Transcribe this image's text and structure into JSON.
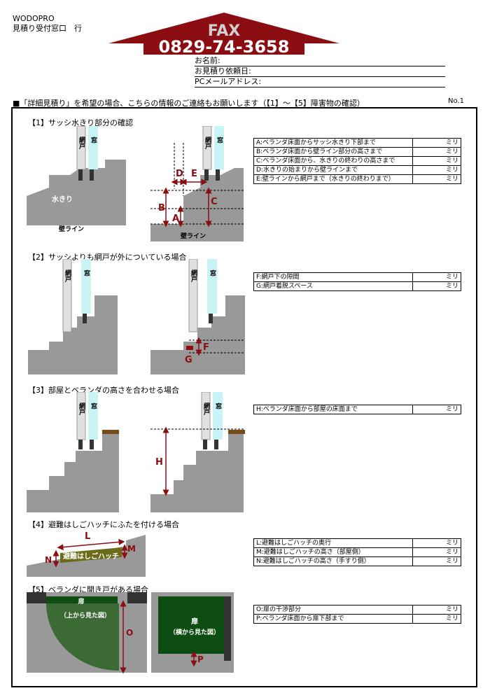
{
  "header": {
    "company": "WODOPRO",
    "window": "見積り受付窓口　行",
    "fax_label": "FAX",
    "fax_number": "0829-74-3658",
    "fields": [
      "お名前:",
      "お見積り依頼日:",
      "PCメールアドレス:"
    ]
  },
  "intro": "■「詳細見積り」を希望の場合、こちらの情報のご連絡もお願いします（【1】〜【5】障害物の確認）",
  "page_no": "No.1",
  "unit": "ミリ",
  "sections": [
    {
      "title": "【1】サッシ水きり部分の確認",
      "rows": [
        "A:ベランダ床面からサッシ水きり下部まで",
        "B:ベランダ床面から壁ライン部分の高さまで",
        "C:ベランダ床面から、水きりの終わりの高さまで",
        "D:水きりの始まりから壁ラインまで",
        "E:壁ラインから網戸まで（水きりの終わりまで）"
      ]
    },
    {
      "title": "【2】サッシよりも網戸が外についている場合",
      "rows": [
        "F:網戸下の隙間",
        "G:網戸着脱スペース"
      ]
    },
    {
      "title": "【3】部屋とベランダの高さを合わせる場合",
      "rows": [
        "H:ベランダ床面から部屋の床面まで"
      ]
    },
    {
      "title": "【4】避難はしごハッチにふたを付ける場合",
      "rows": [
        "L:避難はしごハッチの奥行",
        "M:避難はしごハッチの高さ（部屋側）",
        "N:避難はしごハッチの高さ（手すり側）"
      ]
    },
    {
      "title": "【5】ベランダに開き戸がある場合",
      "rows": [
        "O:扉の干渉部分",
        "P:ベランダ床面から扉下部まで"
      ]
    }
  ],
  "diagram_labels": {
    "screen": "網戸",
    "window": "窓",
    "drip": "水きり",
    "wall_line": "壁ライン",
    "A": "A",
    "B": "B",
    "C": "C",
    "D": "D",
    "E": "E",
    "F": "F",
    "G": "G",
    "H": "H",
    "L": "L",
    "M": "M",
    "N": "N",
    "hatch": "避難はしごハッチ",
    "door": "扉",
    "door_top": "（上から見た図）",
    "door_side": "（横から見た図）",
    "O": "O",
    "P": "P"
  },
  "colors": {
    "roof": "#8b0d12",
    "gray": "#999999",
    "dark": "#333333",
    "glass": "#c8f4f6",
    "arrow": "#8b0d12",
    "door_green": "#0e4d12",
    "floor_brown": "#7a4a1f",
    "hatch_olive": "#6b6b1a"
  }
}
